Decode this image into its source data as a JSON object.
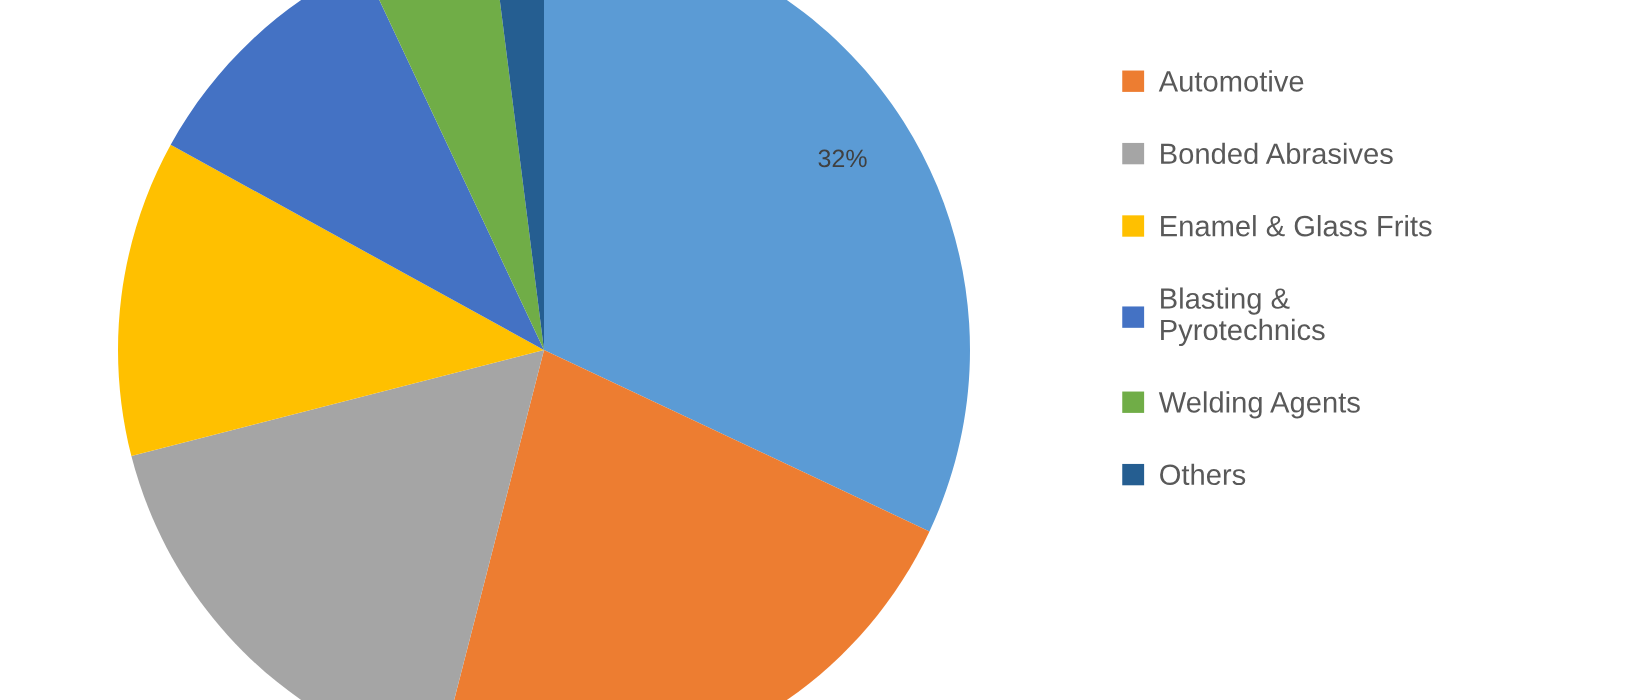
{
  "chart_data": {
    "type": "pie",
    "categories": [
      null,
      "Automotive",
      "Bonded Abrasives",
      "Enamel & Glass Frits",
      "Blasting &\nPyrotechnics",
      "Welding Agents",
      "Others"
    ],
    "values": [
      32,
      22,
      17,
      12,
      10,
      5,
      2
    ],
    "colors": [
      "#5b9bd5",
      "#ed7d31",
      "#a5a5a5",
      "#ffc000",
      "#4472c4",
      "#70ad47",
      "#255e91"
    ],
    "value_labels": [
      "32%",
      null,
      null,
      null,
      null,
      null,
      null
    ],
    "legend": "right"
  }
}
